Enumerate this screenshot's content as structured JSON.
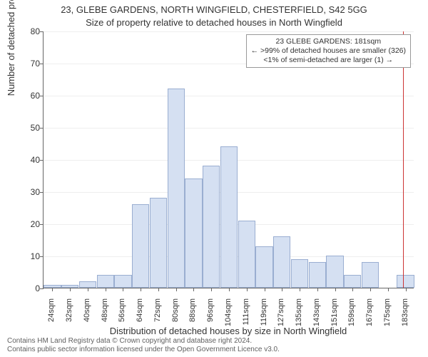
{
  "title_main": "23, GLEBE GARDENS, NORTH WINGFIELD, CHESTERFIELD, S42 5GG",
  "title_sub": "Size of property relative to detached houses in North Wingfield",
  "y_axis_label": "Number of detached properties",
  "x_axis_label": "Distribution of detached houses by size in North Wingfield",
  "chart": {
    "type": "histogram",
    "ylim": [
      0,
      80
    ],
    "ytick_step": 10,
    "bar_fill": "#d5e0f2",
    "bar_border": "#9aaed1",
    "grid_color": "#eeeeee",
    "axis_color": "#666666",
    "marker_color": "#cc3333",
    "background": "#ffffff",
    "label_fontsize": 13,
    "tick_fontsize": 11,
    "bars": [
      {
        "label": "24sqm",
        "value": 1
      },
      {
        "label": "32sqm",
        "value": 1
      },
      {
        "label": "40sqm",
        "value": 2
      },
      {
        "label": "48sqm",
        "value": 4
      },
      {
        "label": "56sqm",
        "value": 4
      },
      {
        "label": "64sqm",
        "value": 26
      },
      {
        "label": "72sqm",
        "value": 28
      },
      {
        "label": "80sqm",
        "value": 62
      },
      {
        "label": "88sqm",
        "value": 34
      },
      {
        "label": "96sqm",
        "value": 38
      },
      {
        "label": "104sqm",
        "value": 44
      },
      {
        "label": "111sqm",
        "value": 21
      },
      {
        "label": "119sqm",
        "value": 13
      },
      {
        "label": "127sqm",
        "value": 16
      },
      {
        "label": "135sqm",
        "value": 9
      },
      {
        "label": "143sqm",
        "value": 8
      },
      {
        "label": "151sqm",
        "value": 10
      },
      {
        "label": "159sqm",
        "value": 4
      },
      {
        "label": "167sqm",
        "value": 8
      },
      {
        "label": "175sqm",
        "value": 0
      },
      {
        "label": "183sqm",
        "value": 4
      }
    ],
    "marker_position": 0.97
  },
  "annotation": {
    "line1": "23 GLEBE GARDENS: 181sqm",
    "line2": "← >99% of detached houses are smaller (326)",
    "line3": "<1% of semi-detached are larger (1) →",
    "border_color": "#999999"
  },
  "footer": {
    "line1": "Contains HM Land Registry data © Crown copyright and database right 2024.",
    "line2": "Contains public sector information licensed under the Open Government Licence v3.0.",
    "text_color": "#606060"
  }
}
